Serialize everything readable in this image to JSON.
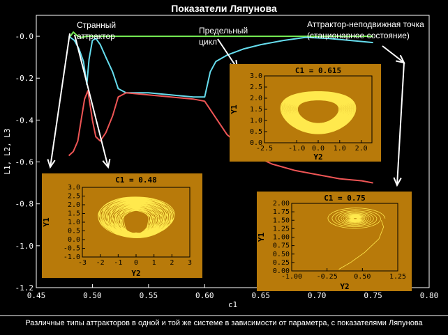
{
  "title": "Показатели Ляпунова",
  "caption": "Различные типы аттракторов в одной и той же системе в зависимости от параметра, с показателями Ляпунова",
  "annotations": {
    "strange": "Странный\nаттрактор",
    "limit_cycle": "Предельный\nцикл",
    "fixed_point": "Аттрактор-неподвижная точка\n(стационарное состояние)"
  },
  "colors": {
    "background": "#000000",
    "series_l1": "#77ee55",
    "series_l2": "#66ddee",
    "series_l3": "#ee5555",
    "inset_bg": "#b87a0a",
    "inset_curve": "#ffe94d",
    "arrow": "#ffffff"
  },
  "chart_data": [
    {
      "type": "line",
      "title": "Показатели Ляпунова",
      "xlabel": "c1",
      "ylabel": "L1, L2, L3",
      "xlim": [
        0.45,
        0.8
      ],
      "ylim": [
        -1.2,
        0.1
      ],
      "xticks": [
        "0.45",
        "0.50",
        "0.55",
        "0.60",
        "0.65",
        "0.70",
        "0.75",
        "0.80"
      ],
      "yticks": [
        "-0.0",
        "-0.2",
        "-0.4",
        "-0.6",
        "-0.8",
        "-1.0",
        "-1.2"
      ],
      "series": [
        {
          "name": "L1",
          "color": "#77ee55",
          "x": [
            0.479,
            0.483,
            0.487,
            0.49,
            0.495,
            0.5,
            0.52,
            0.56,
            0.6,
            0.65,
            0.7,
            0.75
          ],
          "y": [
            -0.01,
            0.02,
            0.0,
            -0.005,
            0.0,
            0.0,
            0.0,
            0.0,
            0.0,
            0.0,
            0.0,
            0.0
          ]
        },
        {
          "name": "L2",
          "color": "#66ddee",
          "x": [
            0.479,
            0.484,
            0.488,
            0.492,
            0.495,
            0.497,
            0.5,
            0.503,
            0.507,
            0.512,
            0.518,
            0.523,
            0.53,
            0.55,
            0.57,
            0.59,
            0.6,
            0.605,
            0.61,
            0.62,
            0.635,
            0.65,
            0.67,
            0.69,
            0.71,
            0.73,
            0.75
          ],
          "y": [
            0.0,
            -0.02,
            -0.06,
            -0.12,
            -0.23,
            -0.11,
            -0.02,
            -0.01,
            -0.04,
            -0.1,
            -0.17,
            -0.25,
            -0.27,
            -0.27,
            -0.28,
            -0.29,
            -0.29,
            -0.17,
            -0.12,
            -0.09,
            -0.06,
            -0.04,
            -0.02,
            -0.005,
            -0.01,
            -0.02,
            -0.03
          ]
        },
        {
          "name": "L3",
          "color": "#ee5555",
          "x": [
            0.479,
            0.483,
            0.487,
            0.49,
            0.493,
            0.496,
            0.5,
            0.503,
            0.507,
            0.512,
            0.518,
            0.523,
            0.53,
            0.55,
            0.57,
            0.59,
            0.6,
            0.61,
            0.62,
            0.64,
            0.66,
            0.68,
            0.7,
            0.72,
            0.74,
            0.75
          ],
          "y": [
            -0.57,
            -0.55,
            -0.5,
            -0.4,
            -0.3,
            -0.26,
            -0.4,
            -0.48,
            -0.5,
            -0.46,
            -0.38,
            -0.29,
            -0.27,
            -0.28,
            -0.29,
            -0.3,
            -0.31,
            -0.39,
            -0.47,
            -0.56,
            -0.61,
            -0.64,
            -0.66,
            -0.68,
            -0.69,
            -0.7
          ]
        }
      ]
    },
    {
      "type": "line",
      "title": "C1 = 0.48",
      "xlabel": "Y2",
      "ylabel": "Y1",
      "xlim": [
        -3,
        3
      ],
      "ylim": [
        -1.0,
        3.0
      ],
      "xticks": [
        "-3",
        "-2",
        "-1",
        "0",
        "1",
        "2",
        "3"
      ],
      "yticks": [
        "3.0",
        "2.5",
        "2.0",
        "1.5",
        "1.0",
        "0.5",
        "0.0",
        "-0.5",
        "-1.0"
      ]
    },
    {
      "type": "line",
      "title": "C1 = 0.615",
      "xlabel": "Y2",
      "ylabel": "Y1",
      "xlim": [
        -2.5,
        2.5
      ],
      "ylim": [
        0.0,
        3.0
      ],
      "xticks": [
        "-2.5",
        "-1.0",
        "0.0",
        "1.0",
        "2.0"
      ],
      "yticks": [
        "3.0",
        "2.5",
        "2.0",
        "1.5",
        "1.0",
        "0.5",
        "0.0"
      ]
    },
    {
      "type": "line",
      "title": "C1 = 0.75",
      "xlabel": "Y2",
      "ylabel": "Y1",
      "xlim": [
        -1.0,
        1.25
      ],
      "ylim": [
        0.0,
        2.0
      ],
      "xticks": [
        "-1.00",
        "-0.25",
        "0.50",
        "1.25"
      ],
      "yticks": [
        "2.00",
        "1.75",
        "1.50",
        "1.25",
        "1.00",
        "0.75",
        "0.50",
        "0.25",
        "0.00"
      ]
    }
  ]
}
